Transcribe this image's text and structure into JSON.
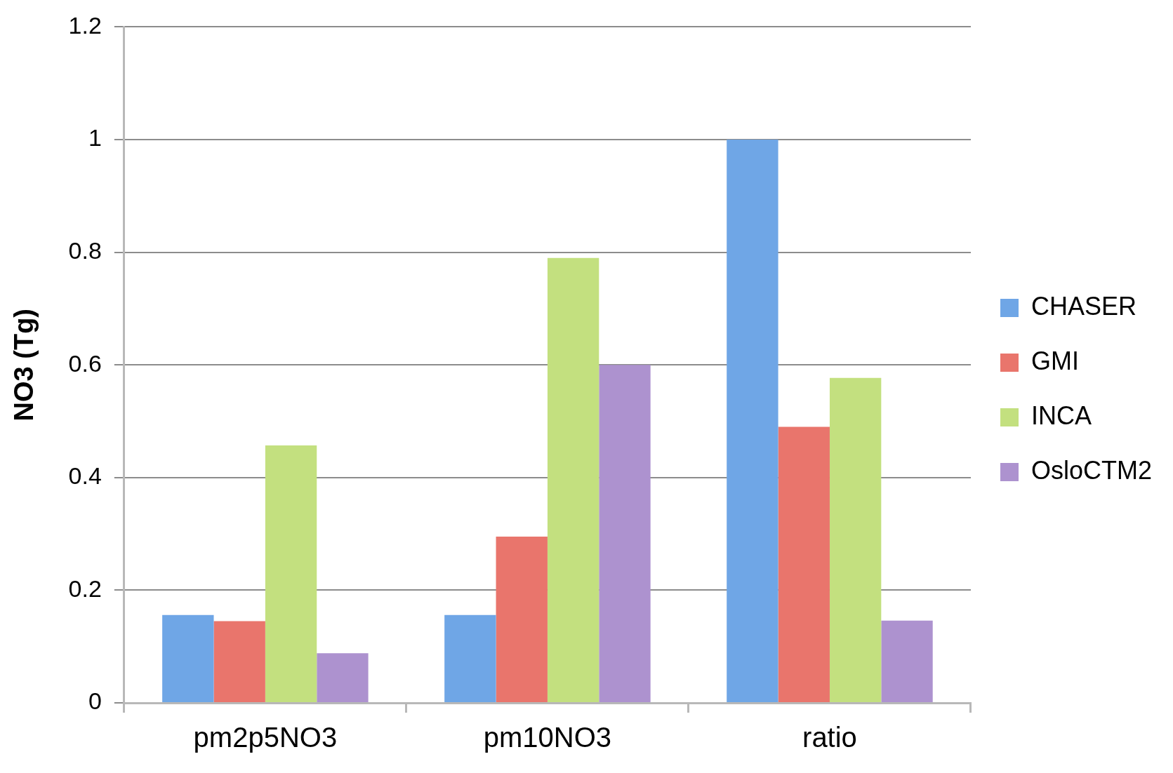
{
  "chart_data": {
    "type": "bar",
    "ylabel": "NO3 (Tg)",
    "categories": [
      "pm2p5NO3",
      "pm10NO3",
      "ratio"
    ],
    "series": [
      {
        "name": "CHASER",
        "color": "#6fa6e6",
        "values": [
          0.156,
          0.156,
          1.0
        ]
      },
      {
        "name": "GMI",
        "color": "#e9756c",
        "values": [
          0.145,
          0.295,
          0.49
        ]
      },
      {
        "name": "INCA",
        "color": "#c3e07f",
        "values": [
          0.457,
          0.79,
          0.577
        ]
      },
      {
        "name": "OsloCTM2",
        "color": "#ad92cf",
        "values": [
          0.088,
          0.6,
          0.146
        ]
      }
    ],
    "ylim": [
      0,
      1.2
    ],
    "yticks": [
      0,
      0.2,
      0.4,
      0.6,
      0.8,
      1,
      1.2
    ],
    "grid": "y",
    "legend": "right"
  }
}
